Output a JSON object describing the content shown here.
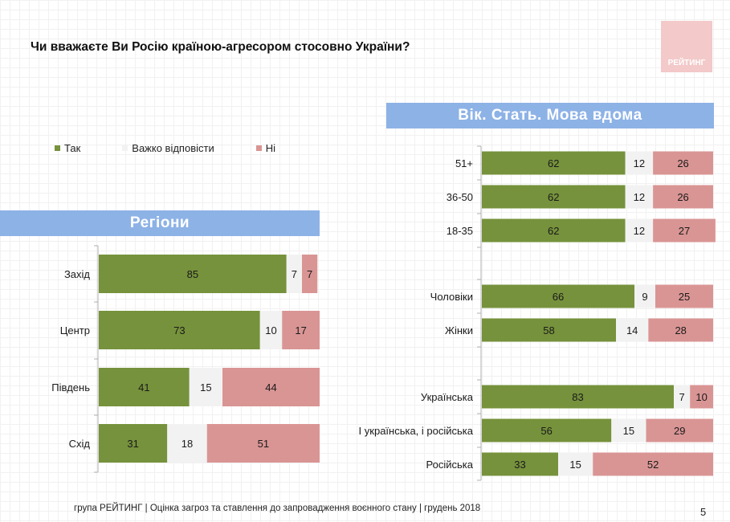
{
  "title": "Чи вважаєте Ви Росію країною-агресором стосовно України?",
  "logo_text": "РЕЙТИНГ",
  "footer": "група РЕЙТИНГ | Оцінка загроз та ставлення до запровадження воєнного стану | грудень 2018",
  "page_number": "5",
  "colors": {
    "yes": "#76923c",
    "hard": "#f2f2f2",
    "no": "#d99594",
    "header": "#8db2e6"
  },
  "chart_data": [
    {
      "type": "bar",
      "orientation": "horizontal",
      "stacked": true,
      "title": "Регіони",
      "categories": [
        "Захід",
        "Центр",
        "Південь",
        "Схід"
      ],
      "series": [
        {
          "name": "Так",
          "values": [
            85,
            73,
            41,
            31
          ]
        },
        {
          "name": "Важко відповісти",
          "values": [
            7,
            10,
            15,
            18
          ]
        },
        {
          "name": "Ні",
          "values": [
            7,
            17,
            44,
            51
          ]
        }
      ],
      "legend": "top-left"
    },
    {
      "type": "bar",
      "orientation": "horizontal",
      "stacked": true,
      "title": "Вік. Стать. Мова вдома",
      "categories": [
        "51+",
        "36-50",
        "18-35",
        "Чоловіки",
        "Жінки",
        "Українська",
        "І українська, і російська",
        "Російська"
      ],
      "series": [
        {
          "name": "Так",
          "values": [
            62,
            62,
            62,
            66,
            58,
            83,
            56,
            33
          ]
        },
        {
          "name": "Важко відповісти",
          "values": [
            12,
            12,
            12,
            9,
            14,
            7,
            15,
            15
          ]
        },
        {
          "name": "Ні",
          "values": [
            26,
            26,
            27,
            25,
            28,
            10,
            29,
            52
          ]
        }
      ]
    }
  ]
}
